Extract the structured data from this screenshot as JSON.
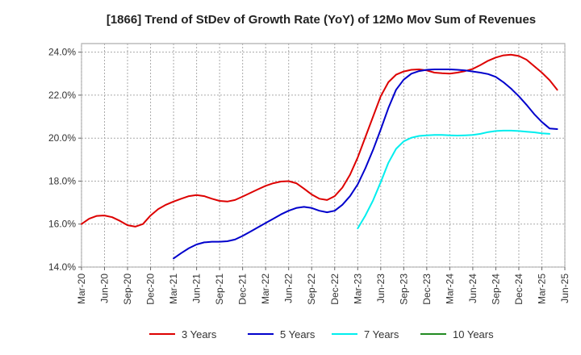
{
  "chart_data": {
    "type": "line",
    "title": "[1866]  Trend of StDev of Growth Rate (YoY) of 12Mo Mov Sum of Revenues",
    "xlabel": "",
    "ylabel": "",
    "ylim": [
      14.0,
      24.4
    ],
    "y_ticks": [
      14.0,
      16.0,
      18.0,
      20.0,
      22.0,
      24.0
    ],
    "y_tick_labels": [
      "14.0%",
      "16.0%",
      "18.0%",
      "20.0%",
      "22.0%",
      "24.0%"
    ],
    "x_tick_labels": [
      "Mar-20",
      "Jun-20",
      "Sep-20",
      "Dec-20",
      "Mar-21",
      "Jun-21",
      "Sep-21",
      "Dec-21",
      "Mar-22",
      "Jun-22",
      "Sep-22",
      "Dec-22",
      "Mar-23",
      "Jun-23",
      "Sep-23",
      "Dec-23",
      "Mar-24",
      "Jun-24",
      "Sep-24",
      "Dec-24",
      "Mar-25",
      "Jun-25"
    ],
    "grid": true,
    "legend_position": "bottom",
    "series": [
      {
        "name": "3 Years",
        "color": "#dd0000",
        "start_index": 0,
        "values": [
          16.0,
          16.25,
          16.38,
          16.4,
          16.32,
          16.15,
          15.95,
          15.88,
          16.0,
          16.4,
          16.7,
          16.9,
          17.05,
          17.18,
          17.3,
          17.35,
          17.3,
          17.18,
          17.08,
          17.05,
          17.12,
          17.28,
          17.45,
          17.62,
          17.78,
          17.9,
          17.98,
          18.0,
          17.9,
          17.65,
          17.38,
          17.18,
          17.12,
          17.3,
          17.7,
          18.3,
          19.1,
          20.05,
          21.0,
          21.95,
          22.6,
          22.95,
          23.1,
          23.18,
          23.2,
          23.15,
          23.05,
          23.02,
          23.0,
          23.05,
          23.12,
          23.22,
          23.4,
          23.6,
          23.75,
          23.85,
          23.88,
          23.82,
          23.65,
          23.35,
          23.05,
          22.7,
          22.25
        ]
      },
      {
        "name": "5 Years",
        "color": "#0000cc",
        "start_index": 12,
        "values": [
          14.4,
          14.65,
          14.88,
          15.05,
          15.15,
          15.18,
          15.18,
          15.2,
          15.28,
          15.45,
          15.65,
          15.85,
          16.05,
          16.25,
          16.45,
          16.62,
          16.75,
          16.8,
          16.75,
          16.62,
          16.55,
          16.62,
          16.9,
          17.3,
          17.85,
          18.6,
          19.45,
          20.4,
          21.4,
          22.25,
          22.72,
          23.0,
          23.12,
          23.18,
          23.2,
          23.2,
          23.2,
          23.18,
          23.15,
          23.1,
          23.05,
          22.98,
          22.85,
          22.6,
          22.3,
          21.95,
          21.55,
          21.12,
          20.75,
          20.45,
          20.42
        ]
      },
      {
        "name": "7 Years",
        "color": "#00eeee",
        "start_index": 36,
        "values": [
          15.8,
          16.4,
          17.1,
          17.95,
          18.85,
          19.5,
          19.85,
          20.02,
          20.1,
          20.13,
          20.15,
          20.15,
          20.13,
          20.12,
          20.13,
          20.15,
          20.2,
          20.28,
          20.33,
          20.35,
          20.35,
          20.33,
          20.3,
          20.27,
          20.22,
          20.2
        ]
      },
      {
        "name": "10 Years",
        "color": "#228b22",
        "start_index": 0,
        "values": []
      }
    ]
  }
}
